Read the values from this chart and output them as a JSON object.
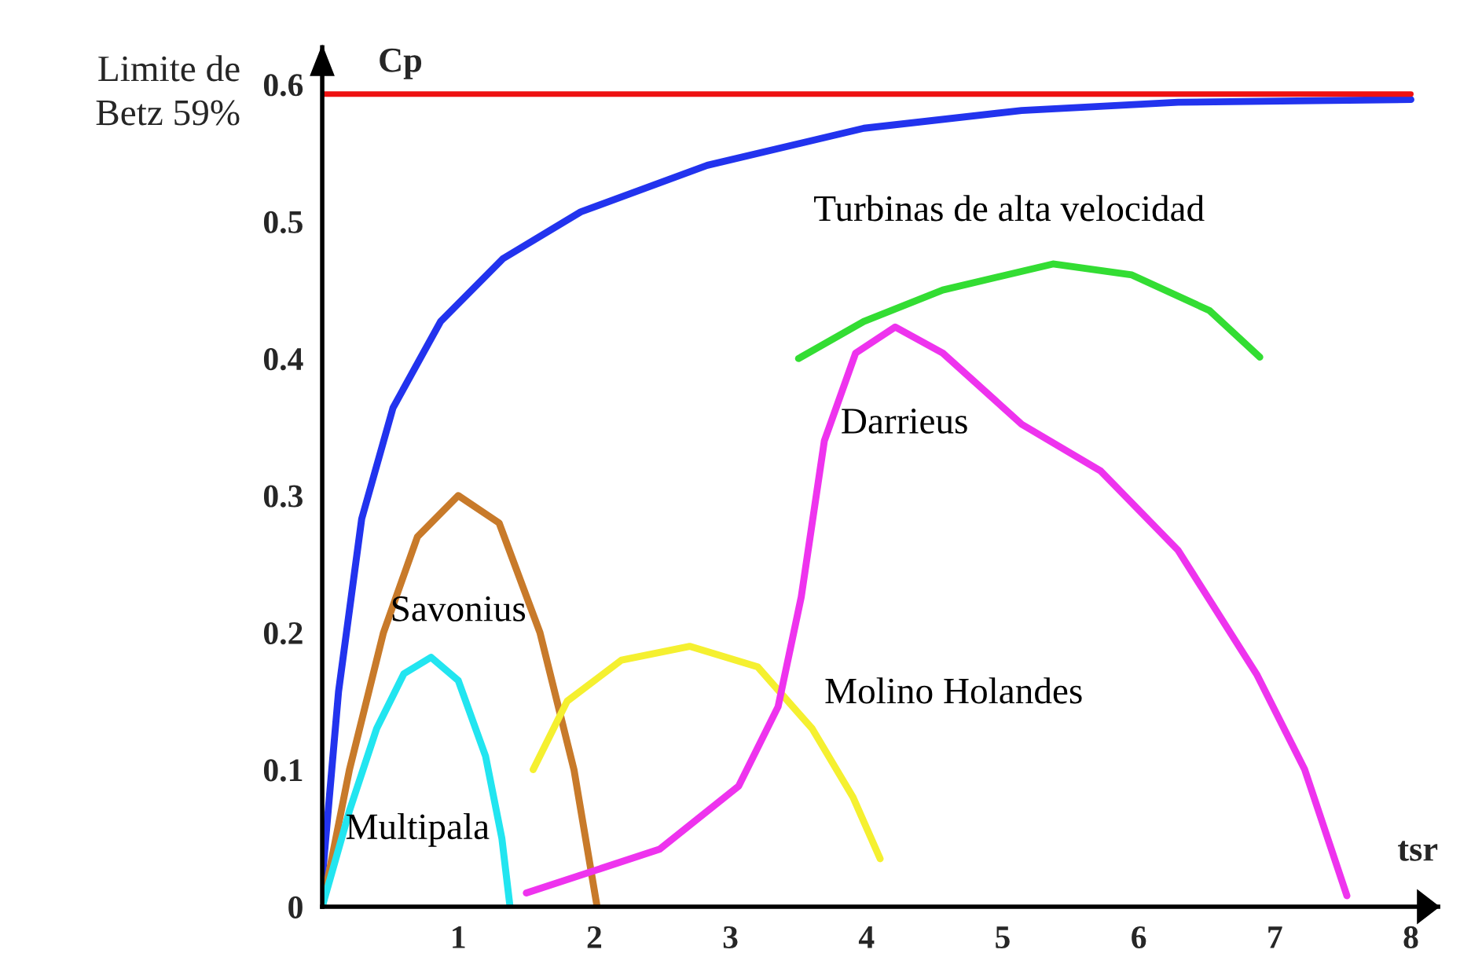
{
  "chart_data": {
    "type": "line",
    "xlabel": "tsr",
    "ylabel": "Cp",
    "xlim": [
      0,
      8.2
    ],
    "ylim": [
      0,
      0.627
    ],
    "xticks": [
      1,
      2,
      3,
      4,
      5,
      6,
      7,
      8
    ],
    "yticks": [
      0,
      0.1,
      0.2,
      0.3,
      0.4,
      0.5,
      0.6
    ],
    "grid": false,
    "marker": "none",
    "line_style": "solid",
    "ref_lines": [
      {
        "axis": "y",
        "value": 0.593,
        "label": "Limite de\nBetz 59%",
        "color": "#ee1111"
      }
    ],
    "series": [
      {
        "color": "#2233ee",
        "x": [
          0,
          0.12,
          0.29,
          0.52,
          0.87,
          1.33,
          1.9,
          2.83,
          3.98,
          5.14,
          6.29,
          8
        ],
        "values": [
          0.02,
          0.157,
          0.283,
          0.364,
          0.427,
          0.473,
          0.507,
          0.541,
          0.568,
          0.581,
          0.587,
          0.589
        ]
      },
      {
        "name": "Savonius",
        "color": "#c87a2a",
        "x": [
          0,
          0.2,
          0.45,
          0.7,
          1.0,
          1.3,
          1.6,
          1.85,
          2.02
        ],
        "values": [
          0,
          0.1,
          0.2,
          0.27,
          0.3,
          0.28,
          0.2,
          0.1,
          0
        ]
      },
      {
        "name": "Multipala",
        "color": "#22e5f0",
        "x": [
          0,
          0.2,
          0.4,
          0.6,
          0.8,
          1.0,
          1.2,
          1.32,
          1.38
        ],
        "values": [
          0,
          0.07,
          0.13,
          0.17,
          0.182,
          0.165,
          0.11,
          0.05,
          0
        ]
      },
      {
        "name": "Molino Holandes",
        "color": "#f5f030",
        "x": [
          1.55,
          1.8,
          2.2,
          2.7,
          3.2,
          3.6,
          3.9,
          4.1
        ],
        "values": [
          0.1,
          0.15,
          0.18,
          0.19,
          0.175,
          0.13,
          0.08,
          0.035
        ]
      },
      {
        "name": "Darrieus",
        "color": "#ee33ee",
        "x": [
          1.5,
          2.48,
          3.06,
          3.35,
          3.52,
          3.69,
          3.92,
          4.21,
          4.56,
          5.14,
          5.72,
          6.29,
          6.87,
          7.22,
          7.53
        ],
        "values": [
          0.01,
          0.042,
          0.088,
          0.146,
          0.226,
          0.34,
          0.404,
          0.423,
          0.404,
          0.352,
          0.318,
          0.26,
          0.169,
          0.1,
          0.008
        ]
      },
      {
        "name": "Turbinas de alta velocidad",
        "color": "#33dd33",
        "x": [
          3.5,
          3.98,
          4.56,
          5.37,
          5.95,
          6.52,
          6.89
        ],
        "values": [
          0.4,
          0.427,
          0.45,
          0.469,
          0.461,
          0.435,
          0.401
        ]
      }
    ]
  }
}
